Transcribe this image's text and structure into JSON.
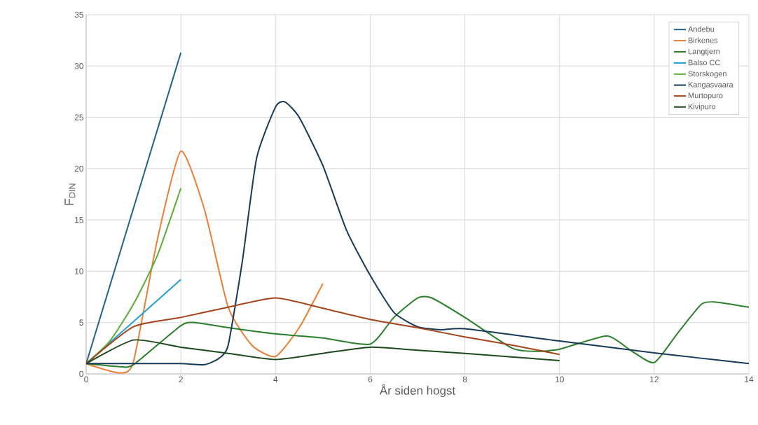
{
  "chart_data": {
    "type": "line",
    "xlabel": "År siden hogst",
    "ylabel": "F$_{DIN}$",
    "xlim": [
      0,
      14
    ],
    "xticks": [
      0,
      2,
      4,
      6,
      8,
      10,
      12,
      14
    ],
    "ylim": [
      0,
      35
    ],
    "yticks": [
      0,
      5,
      10,
      15,
      20,
      25,
      30,
      35
    ],
    "grid": true,
    "legend": "top right",
    "marker": "none",
    "series": [
      {
        "name": "Andebu",
        "color": "#1f6391",
        "x": [
          0,
          2
        ],
        "values": [
          1,
          31.3
        ]
      },
      {
        "name": "Birkenes",
        "color": "#ed7d31",
        "x": [
          0,
          0.7,
          1,
          1.5,
          2,
          2.5,
          3,
          3.5,
          4,
          4.5,
          5
        ],
        "values": [
          1,
          0.1,
          1.2,
          13,
          21.7,
          16,
          6.5,
          2.8,
          1.7,
          4.5,
          8.8
        ]
      },
      {
        "name": "Langtjern",
        "color": "#2a7f2a",
        "x": [
          0,
          0.7,
          1,
          2,
          2.3,
          3,
          4,
          5,
          6,
          6.5,
          7,
          7.3,
          8,
          9,
          9.5,
          10,
          11,
          11.5,
          12,
          12.5,
          13,
          13.3,
          14
        ],
        "values": [
          1,
          0.7,
          0.9,
          4.7,
          5.0,
          4.5,
          3.9,
          3.5,
          2.9,
          5.5,
          7.4,
          7.4,
          5.5,
          2.5,
          2.2,
          2.4,
          3.7,
          2.3,
          1.1,
          4,
          6.8,
          7.0,
          6.5
        ]
      },
      {
        "name": "Balso CC",
        "color": "#1fa0d8",
        "x": [
          0,
          2
        ],
        "values": [
          1,
          9.2
        ]
      },
      {
        "name": "Storskogen",
        "color": "#5aaf32",
        "x": [
          0,
          0.5,
          1,
          1.5,
          2
        ],
        "values": [
          1,
          3.2,
          6.8,
          11.5,
          18.1
        ]
      },
      {
        "name": "Kangasvaara",
        "color": "#163a58",
        "x": [
          0,
          1,
          2,
          2.5,
          2.8,
          3,
          3.3,
          3.6,
          4,
          4.2,
          4.5,
          5,
          5.5,
          6,
          6.5,
          7,
          7.5,
          8,
          10,
          12,
          14
        ],
        "values": [
          1,
          1,
          1,
          0.9,
          1.5,
          2.8,
          11,
          21,
          26,
          26.5,
          25,
          20.3,
          14,
          9.6,
          6,
          4.6,
          4.3,
          4.4,
          3.2,
          2.05,
          1.0
        ]
      },
      {
        "name": "Murtopuro",
        "color": "#a5441a",
        "x": [
          0,
          1,
          2,
          3,
          4,
          5,
          6,
          7,
          8,
          9,
          10
        ],
        "values": [
          1,
          4.6,
          5.5,
          6.5,
          7.4,
          6.4,
          5.3,
          4.5,
          3.6,
          2.8,
          1.9
        ]
      },
      {
        "name": "Kivipuro",
        "color": "#1c4a1c",
        "x": [
          0,
          1,
          2,
          3,
          4,
          5,
          6,
          7,
          8,
          10
        ],
        "values": [
          1,
          3.3,
          2.6,
          2,
          1.4,
          2,
          2.6,
          2.3,
          2,
          1.3
        ]
      }
    ]
  }
}
